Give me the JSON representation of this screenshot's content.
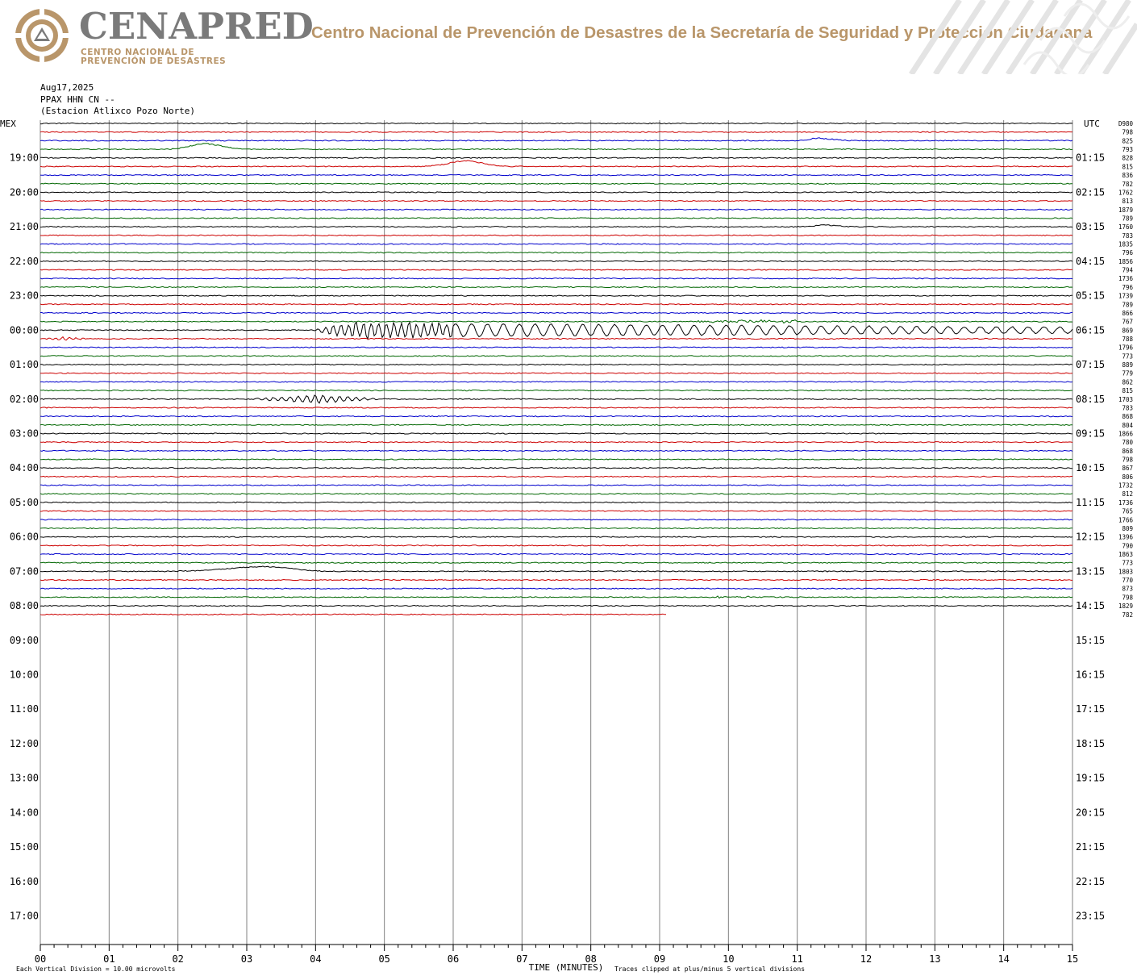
{
  "header": {
    "logo_word": "CENAPRED",
    "logo_line1": "CENTRO NACIONAL DE",
    "logo_line2": "PREVENCIÓN DE DESASTRES",
    "agency_title": "Centro Nacional de Prevención de Desastres de la Secretaría de Seguridad y Protección Ciudadana"
  },
  "meta": {
    "date": "Aug17,2025",
    "channel": "PPAX HHN CN --",
    "station": "(Estacion Atlixco Pozo Norte)"
  },
  "colors": {
    "black": "#000000",
    "red": "#cc0000",
    "blue": "#0000cc",
    "green": "#006600",
    "grid": "#808080",
    "brand_gold": "#b9966a",
    "brand_gray": "#7a7a7a"
  },
  "chart_data": {
    "type": "line",
    "title": "",
    "xlabel": "TIME (MINUTES)",
    "left_axis_label": "MEX",
    "right_axis_label": "UTC",
    "xlim": [
      0,
      15
    ],
    "x_ticks": [
      "00",
      "01",
      "02",
      "03",
      "04",
      "05",
      "06",
      "07",
      "08",
      "09",
      "10",
      "11",
      "12",
      "13",
      "14",
      "15"
    ],
    "left_hour_labels": [
      "19:00",
      "20:00",
      "21:00",
      "22:00",
      "23:00",
      "00:00",
      "01:00",
      "02:00",
      "03:00",
      "04:00",
      "05:00",
      "06:00",
      "07:00",
      "08:00",
      "09:00",
      "10:00",
      "11:00",
      "12:00",
      "13:00",
      "14:00",
      "15:00",
      "16:00",
      "17:00"
    ],
    "right_hour_labels": [
      "01:15",
      "02:15",
      "03:15",
      "04:15",
      "05:15",
      "06:15",
      "07:15",
      "08:15",
      "09:15",
      "10:15",
      "11:15",
      "12:15",
      "13:15",
      "14:15",
      "15:15",
      "16:15",
      "17:15",
      "18:15",
      "19:15",
      "20:15",
      "21:15",
      "22:15",
      "23:15"
    ],
    "trace_color_cycle": [
      "black",
      "red",
      "blue",
      "green"
    ],
    "traces_total": 58,
    "last_trace_end_minute": 9.1,
    "right_values": [
      "D980",
      "798",
      "825",
      "793",
      "828",
      "815",
      "836",
      "782",
      "1762",
      "813",
      "1879",
      "789",
      "1760",
      "783",
      "1835",
      "796",
      "1856",
      "794",
      "1736",
      "796",
      "1739",
      "789",
      "866",
      "767",
      "869",
      "788",
      "1796",
      "773",
      "889",
      "779",
      "862",
      "815",
      "1703",
      "783",
      "868",
      "804",
      "1866",
      "780",
      "868",
      "798",
      "867",
      "806",
      "1732",
      "812",
      "1736",
      "765",
      "1766",
      "809",
      "1396",
      "790",
      "1863",
      "773",
      "1803",
      "770",
      "873",
      "798",
      "1829",
      "782"
    ],
    "events": [
      {
        "trace": 3,
        "type": "dip",
        "start": 1.9,
        "center": 2.4,
        "end": 3.2,
        "amplitude": 7
      },
      {
        "trace": 5,
        "type": "dip",
        "start": 5.6,
        "center": 6.2,
        "end": 7.0,
        "amplitude": 7
      },
      {
        "trace": 2,
        "type": "dip",
        "start": 11.0,
        "center": 11.3,
        "end": 12.0,
        "amplitude": 3
      },
      {
        "trace": 12,
        "type": "dip",
        "start": 11.0,
        "center": 11.4,
        "end": 12.0,
        "amplitude": 2
      },
      {
        "trace": 24,
        "type": "quake",
        "start": 3.9,
        "peak": 4.5,
        "end": 15.0,
        "amplitude": 9,
        "period": 0.11
      },
      {
        "trace": 25,
        "type": "waves",
        "start": 0.0,
        "end": 0.7,
        "amplitude": 2,
        "period": 0.1
      },
      {
        "trace": 32,
        "type": "waves",
        "start": 3.0,
        "end": 5.0,
        "amplitude": 5,
        "period": 0.12
      },
      {
        "trace": 52,
        "type": "dip",
        "start": 2.0,
        "center": 3.3,
        "end": 4.5,
        "amplitude": 6
      },
      {
        "trace": 23,
        "type": "burst",
        "start": 9.5,
        "end": 11.0,
        "amplitude": 3
      },
      {
        "trace": 55,
        "type": "burst",
        "start": 9.8,
        "end": 10.3,
        "amplitude": 2
      }
    ],
    "footer_left": "Each Vertical Division =   10.00 microvolts",
    "footer_right": "Traces clipped at plus/minus 5 vertical divisions"
  }
}
